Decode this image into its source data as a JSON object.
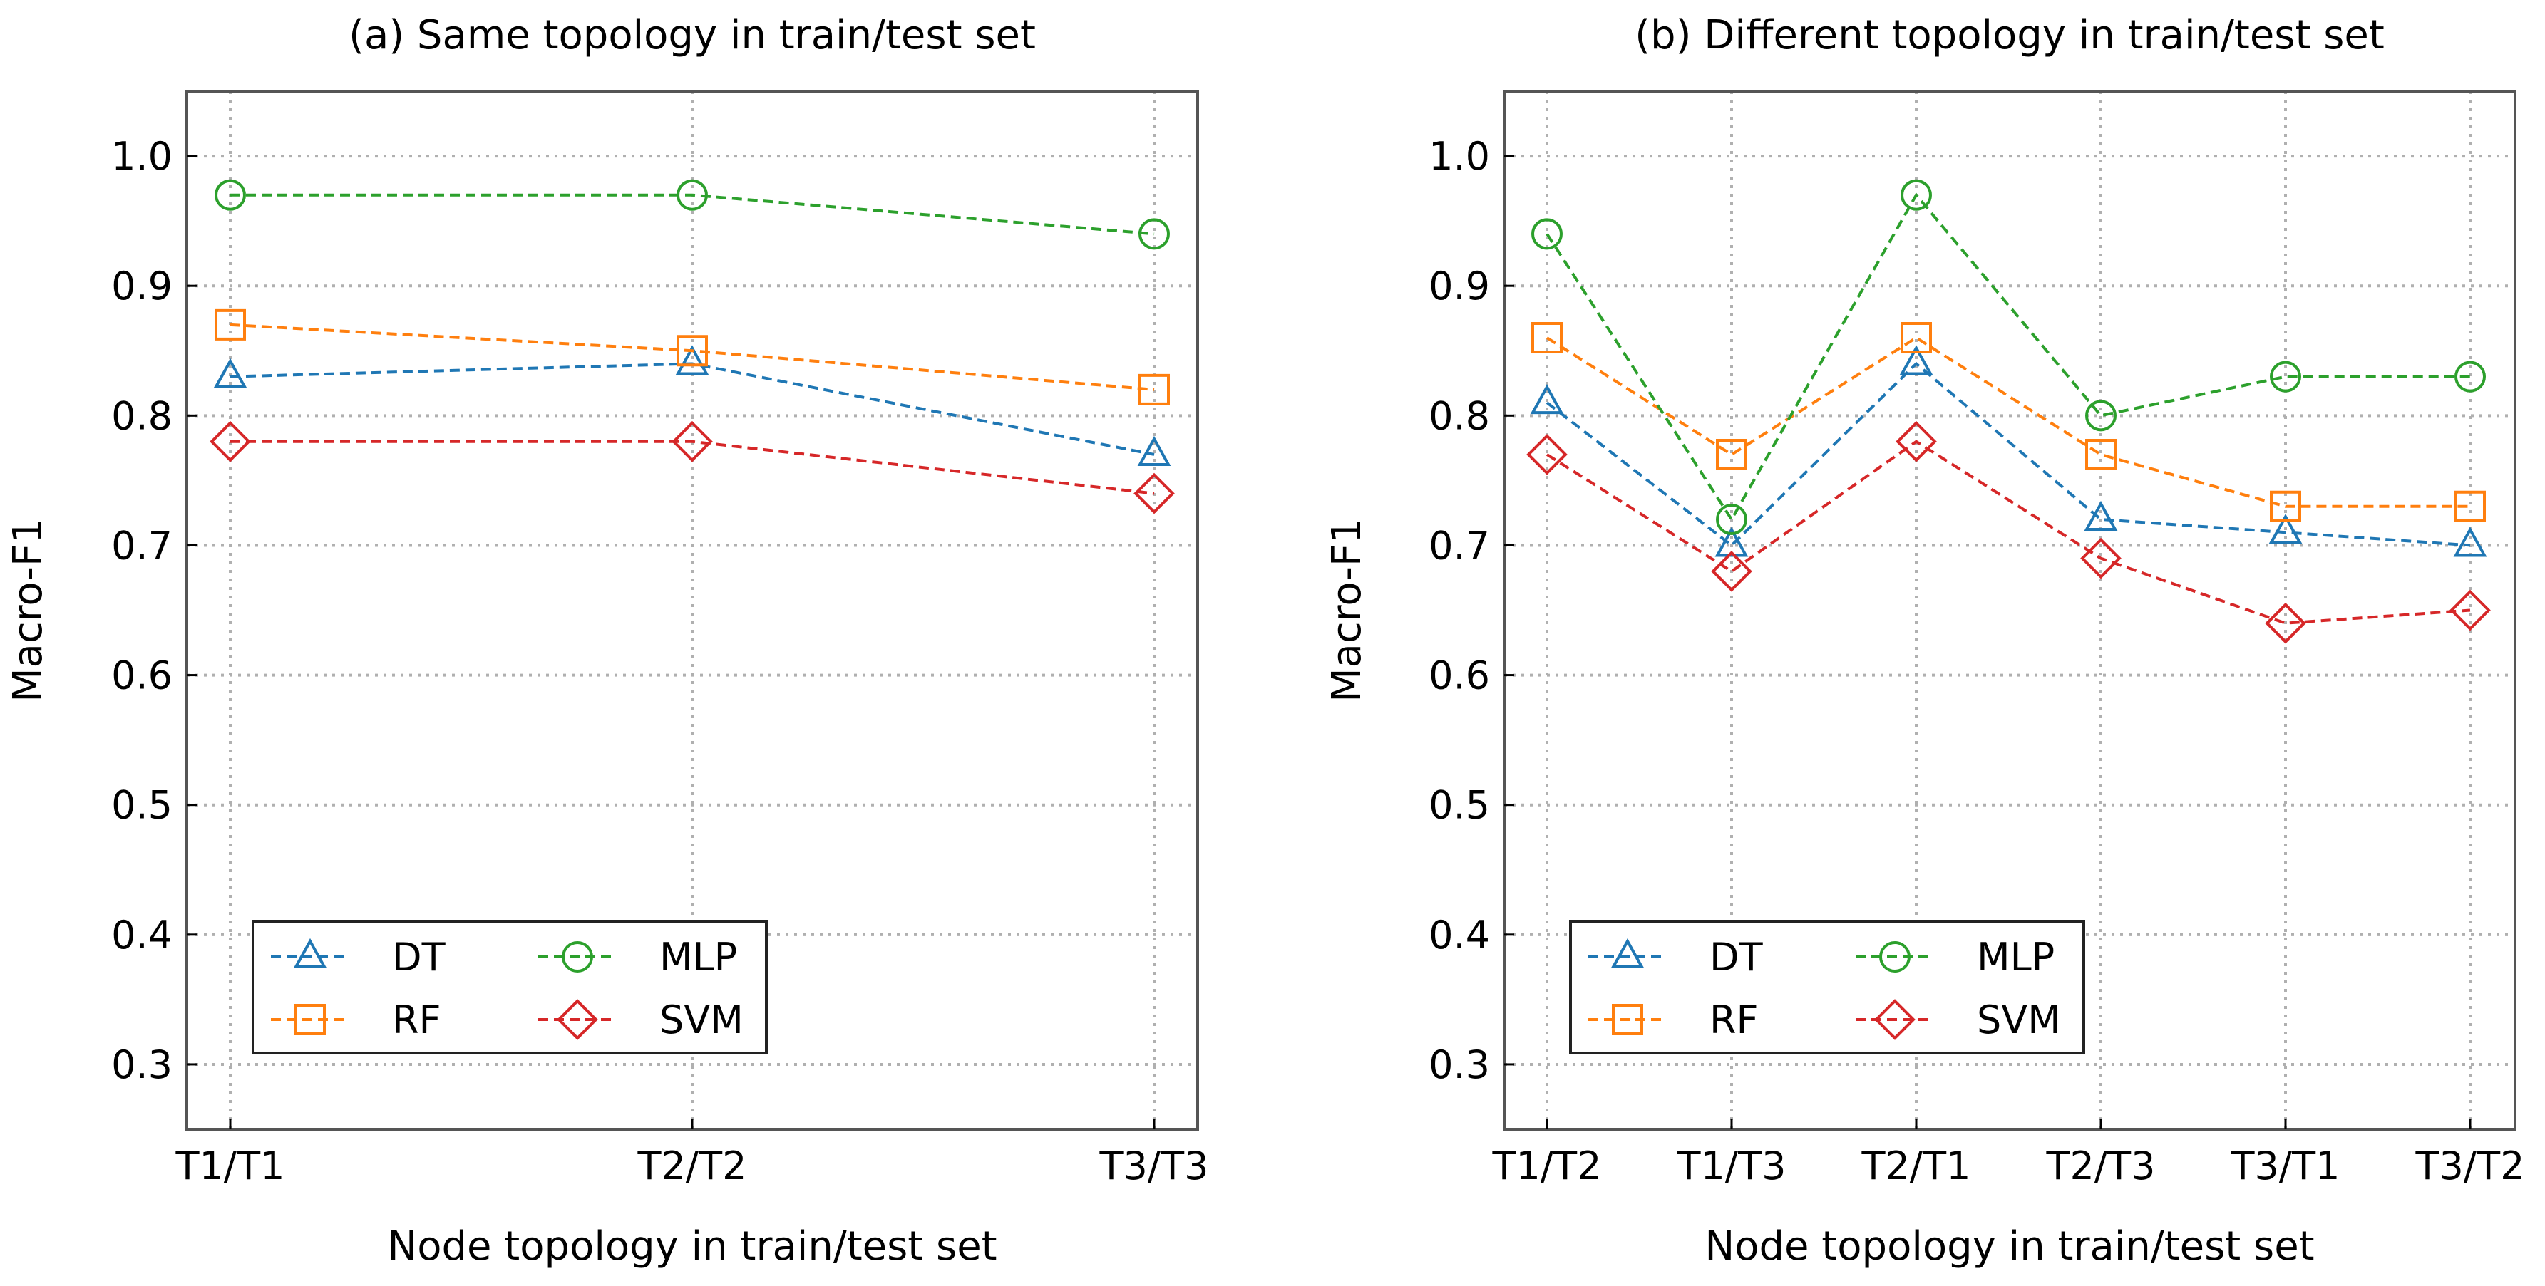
{
  "chart_data": [
    {
      "type": "line",
      "title": "(a) Same topology in train/test set",
      "xlabel": "Node topology in train/test set",
      "ylabel": "Macro-F1",
      "categories": [
        "T1/T1",
        "T2/T2",
        "T3/T3"
      ],
      "ylim": [
        0.25,
        1.05
      ],
      "yticks": [
        "0.3",
        "0.4",
        "0.5",
        "0.6",
        "0.7",
        "0.8",
        "0.9",
        "1.0"
      ],
      "grid": true,
      "legend_position": "lower-left",
      "series": [
        {
          "name": "DT",
          "values": [
            0.83,
            0.84,
            0.77
          ],
          "color": "#1f77b4",
          "marker": "triangle"
        },
        {
          "name": "RF",
          "values": [
            0.87,
            0.85,
            0.82
          ],
          "color": "#ff7f0e",
          "marker": "square"
        },
        {
          "name": "MLP",
          "values": [
            0.97,
            0.97,
            0.94
          ],
          "color": "#2ca02c",
          "marker": "circle"
        },
        {
          "name": "SVM",
          "values": [
            0.78,
            0.78,
            0.74
          ],
          "color": "#d62728",
          "marker": "diamond"
        }
      ]
    },
    {
      "type": "line",
      "title": "(b) Different topology in train/test set",
      "xlabel": "Node topology in train/test set",
      "ylabel": "Macro-F1",
      "categories": [
        "T1/T2",
        "T1/T3",
        "T2/T1",
        "T2/T3",
        "T3/T1",
        "T3/T2"
      ],
      "ylim": [
        0.25,
        1.05
      ],
      "yticks": [
        "0.3",
        "0.4",
        "0.5",
        "0.6",
        "0.7",
        "0.8",
        "0.9",
        "1.0"
      ],
      "grid": true,
      "legend_position": "lower-left",
      "series": [
        {
          "name": "DT",
          "values": [
            0.81,
            0.7,
            0.84,
            0.72,
            0.71,
            0.7
          ],
          "color": "#1f77b4",
          "marker": "triangle"
        },
        {
          "name": "RF",
          "values": [
            0.86,
            0.77,
            0.86,
            0.77,
            0.73,
            0.73
          ],
          "color": "#ff7f0e",
          "marker": "square"
        },
        {
          "name": "MLP",
          "values": [
            0.94,
            0.72,
            0.97,
            0.8,
            0.83,
            0.83
          ],
          "color": "#2ca02c",
          "marker": "circle"
        },
        {
          "name": "SVM",
          "values": [
            0.77,
            0.68,
            0.78,
            0.69,
            0.64,
            0.65
          ],
          "color": "#d62728",
          "marker": "diamond"
        }
      ]
    }
  ]
}
